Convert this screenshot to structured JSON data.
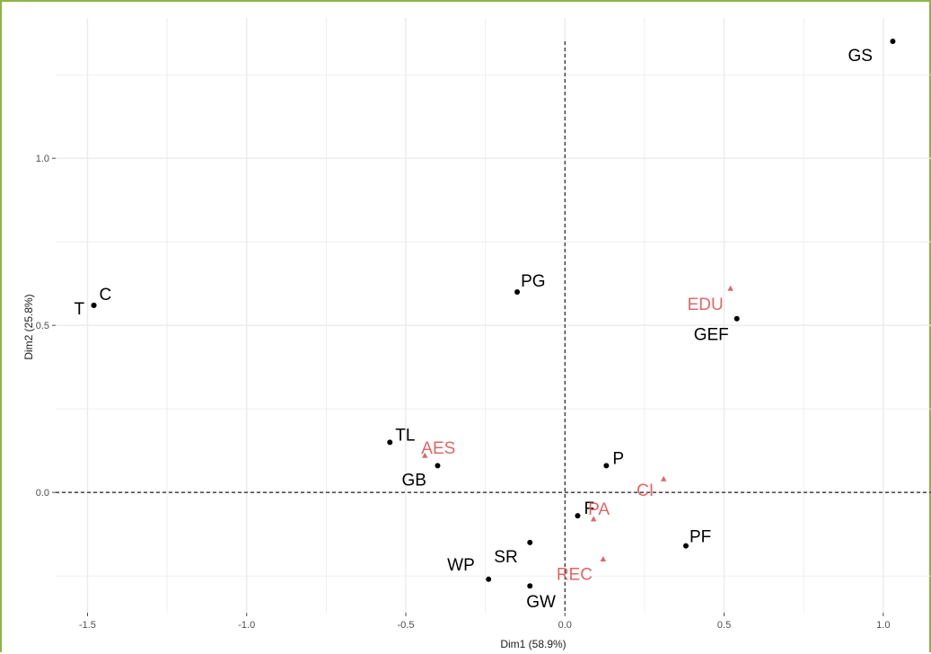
{
  "chart_data": {
    "type": "scatter",
    "title": "",
    "xlabel": "Dim1 (58.9%)",
    "ylabel": "Dim2 (25.8%)",
    "xlim": [
      -1.6,
      1.15
    ],
    "ylim": [
      -0.36,
      1.42
    ],
    "x_ticks": [
      -1.5,
      -1.0,
      -0.5,
      0.0,
      0.5,
      1.0
    ],
    "x_tick_labels": [
      "-1.5",
      "-1.0",
      "-0.5",
      "0.0",
      "0.5",
      "1.0"
    ],
    "y_ticks": [
      0.0,
      0.5,
      1.0
    ],
    "y_tick_labels": [
      "0.0",
      "0.5",
      "1.0"
    ],
    "grid": true,
    "reference_lines": {
      "x": 0,
      "y": 0,
      "style": "dashed"
    },
    "colors": {
      "points": "#000000",
      "supplementary": "#e06666",
      "grid": "#ebebeb",
      "frame": "#8fb446"
    },
    "series": [
      {
        "marker": "circle",
        "color": "#000000",
        "points": [
          {
            "label": "GS",
            "x": 1.03,
            "y": 1.35
          },
          {
            "label": "C",
            "x": -1.48,
            "y": 0.56
          },
          {
            "label": "T",
            "x": -1.48,
            "y": 0.56
          },
          {
            "label": "PG",
            "x": -0.15,
            "y": 0.6
          },
          {
            "label": "GEF",
            "x": 0.54,
            "y": 0.52
          },
          {
            "label": "TL",
            "x": -0.55,
            "y": 0.15
          },
          {
            "label": "GB",
            "x": -0.4,
            "y": 0.08
          },
          {
            "label": "P",
            "x": 0.13,
            "y": 0.08
          },
          {
            "label": "F",
            "x": 0.04,
            "y": -0.07
          },
          {
            "label": "PF",
            "x": 0.38,
            "y": -0.16
          },
          {
            "label": "SR",
            "x": -0.11,
            "y": -0.15
          },
          {
            "label": "WP",
            "x": -0.24,
            "y": -0.26
          },
          {
            "label": "GW",
            "x": -0.11,
            "y": -0.28
          }
        ]
      },
      {
        "marker": "triangle",
        "color": "#e06666",
        "points": [
          {
            "label": "EDU",
            "x": 0.52,
            "y": 0.61
          },
          {
            "label": "AES",
            "x": -0.44,
            "y": 0.11
          },
          {
            "label": "CI",
            "x": 0.31,
            "y": 0.04
          },
          {
            "label": "PA",
            "x": 0.09,
            "y": -0.08
          },
          {
            "label": "REC",
            "x": 0.12,
            "y": -0.2
          }
        ]
      }
    ]
  }
}
